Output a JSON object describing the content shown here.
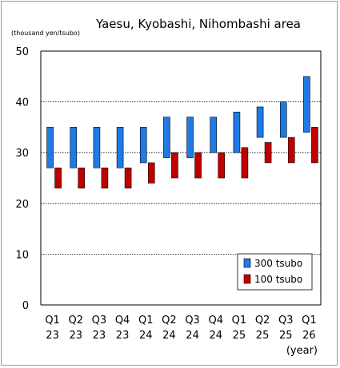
{
  "chart_data": {
    "type": "bar",
    "title": "Yaesu, Kyobashi, Nihombashi area",
    "unit_label": "(thousand yen/tsubo)",
    "x_unit_label": "(year)",
    "ylim": [
      0,
      50
    ],
    "yticks": [
      0,
      10,
      20,
      30,
      40,
      50
    ],
    "grid": true,
    "legend_position": "bottom-right",
    "categories": [
      {
        "q": "Q1",
        "y": "23"
      },
      {
        "q": "Q2",
        "y": "23"
      },
      {
        "q": "Q3",
        "y": "23"
      },
      {
        "q": "Q4",
        "y": "23"
      },
      {
        "q": "Q1",
        "y": "24"
      },
      {
        "q": "Q2",
        "y": "24"
      },
      {
        "q": "Q3",
        "y": "24"
      },
      {
        "q": "Q4",
        "y": "24"
      },
      {
        "q": "Q1",
        "y": "25"
      },
      {
        "q": "Q2",
        "y": "25"
      },
      {
        "q": "Q3",
        "y": "25"
      },
      {
        "q": "Q1",
        "y": "26"
      }
    ],
    "series": [
      {
        "name": "300 tsubo",
        "color": "#1f7ae6",
        "ranges": [
          [
            27,
            35
          ],
          [
            27,
            35
          ],
          [
            27,
            35
          ],
          [
            27,
            35
          ],
          [
            28,
            35
          ],
          [
            29,
            37
          ],
          [
            29,
            37
          ],
          [
            30,
            37
          ],
          [
            30,
            38
          ],
          [
            33,
            39
          ],
          [
            33,
            40
          ],
          [
            34,
            45
          ]
        ]
      },
      {
        "name": "100 tsubo",
        "color": "#c00000",
        "ranges": [
          [
            23,
            27
          ],
          [
            23,
            27
          ],
          [
            23,
            27
          ],
          [
            23,
            27
          ],
          [
            24,
            28
          ],
          [
            25,
            30
          ],
          [
            25,
            30
          ],
          [
            25,
            30
          ],
          [
            25,
            31
          ],
          [
            28,
            32
          ],
          [
            28,
            33
          ],
          [
            28,
            35
          ]
        ]
      }
    ]
  }
}
